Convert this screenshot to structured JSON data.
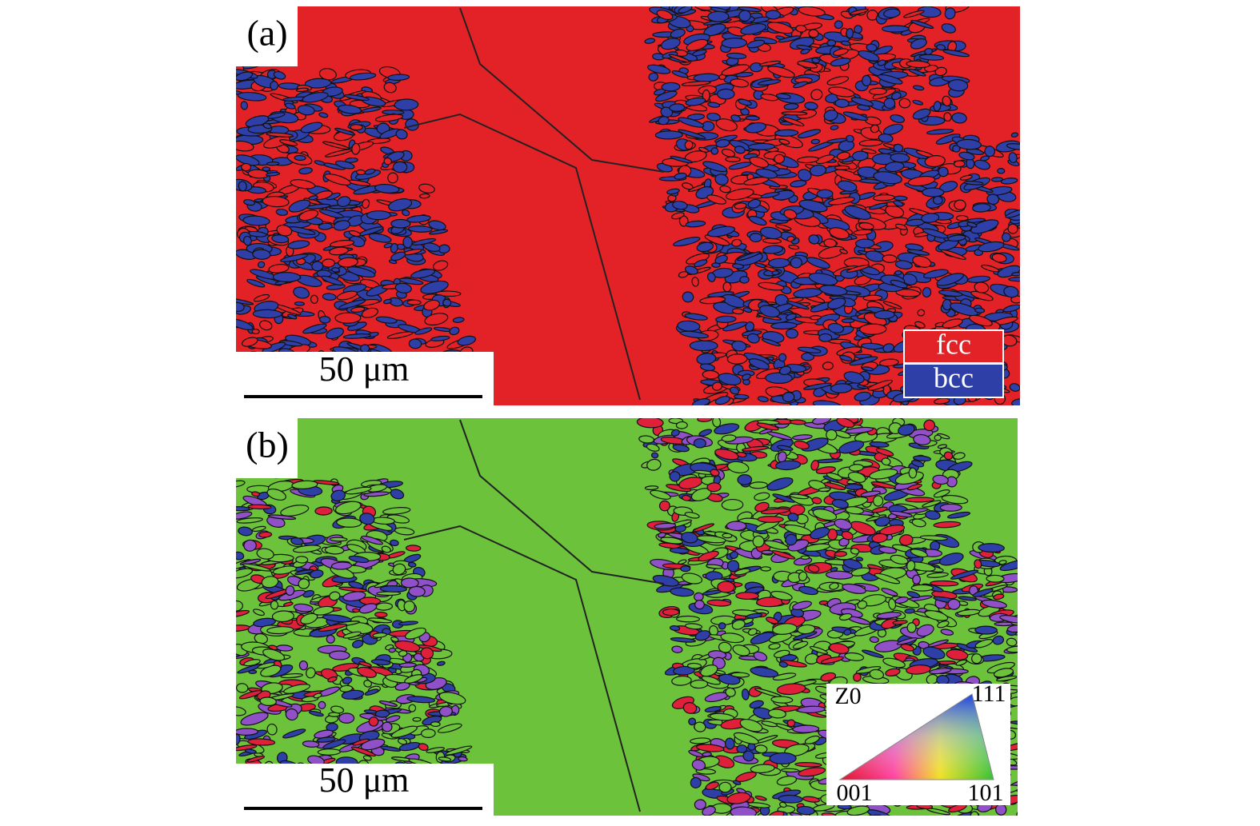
{
  "panels": [
    {
      "label": "(a)",
      "scale_bar": "50 μm",
      "legend": [
        "fcc",
        "bcc"
      ]
    },
    {
      "label": "(b)",
      "scale_bar": "50 μm",
      "key": {
        "title": "Z0",
        "corners": [
          "111",
          "001",
          "101"
        ]
      }
    }
  ]
}
